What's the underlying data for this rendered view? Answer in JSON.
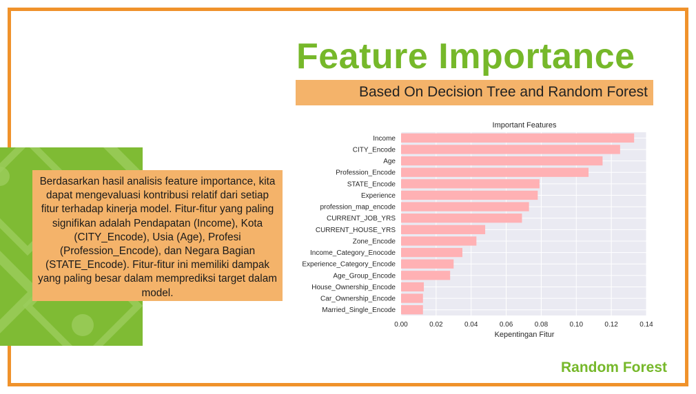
{
  "slide": {
    "title": "Feature Importance",
    "subtitle": "Based On Decision Tree and Random Forest",
    "description": "Berdasarkan hasil analisis feature importance, kita dapat mengevaluasi kontribusi relatif dari setiap fitur terhadap kinerja model. Fitur-fitur yang paling signifikan adalah Pendapatan (Income), Kota (CITY_Encode), Usia (Age), Profesi (Profession_Encode), dan Negara Bagian (STATE_Encode). Fitur-fitur ini memiliki dampak yang paling besar dalam memprediksi target dalam model.",
    "footer": "Random Forest"
  },
  "colors": {
    "accent_orange": "#f0922b",
    "box_orange": "#f4b36a",
    "green": "#76b82a",
    "bar": "#ffb1b4",
    "plot_bg": "#eaeaf2"
  },
  "chart_data": {
    "type": "bar",
    "orientation": "horizontal",
    "title": "Important Features",
    "xlabel": "Kepentingan Fitur",
    "ylabel": "",
    "xlim": [
      0,
      0.14
    ],
    "xticks": [
      "0.00",
      "0.02",
      "0.04",
      "0.06",
      "0.08",
      "0.10",
      "0.12",
      "0.14"
    ],
    "grid": true,
    "categories": [
      "Income",
      "CITY_Encode",
      "Age",
      "Profession_Encode",
      "STATE_Encode",
      "Experience",
      "profession_map_encode",
      "CURRENT_JOB_YRS",
      "CURRENT_HOUSE_YRS",
      "Zone_Encode",
      "Income_Category_Enocode",
      "Experience_Category_Encode",
      "Age_Group_Encode",
      "House_Ownership_Encode",
      "Car_Ownership_Encode",
      "Married_Single_Encode"
    ],
    "values": [
      0.133,
      0.125,
      0.115,
      0.107,
      0.079,
      0.078,
      0.073,
      0.069,
      0.048,
      0.043,
      0.035,
      0.03,
      0.028,
      0.013,
      0.0125,
      0.0125
    ]
  }
}
